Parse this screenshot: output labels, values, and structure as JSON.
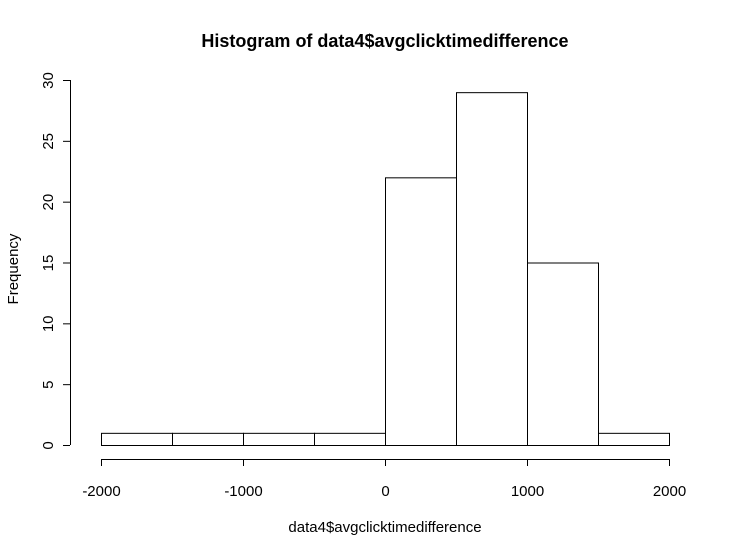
{
  "chart_data": {
    "type": "bar",
    "title": "Histogram of data4$avgclicktimedifference",
    "xlabel": "data4$avgclicktimedifference",
    "ylabel": "Frequency",
    "bins": [
      {
        "from": -2000,
        "to": -1500,
        "count": 1
      },
      {
        "from": -1500,
        "to": -1000,
        "count": 1
      },
      {
        "from": -1000,
        "to": -500,
        "count": 1
      },
      {
        "from": -500,
        "to": 0,
        "count": 1
      },
      {
        "from": 0,
        "to": 500,
        "count": 22
      },
      {
        "from": 500,
        "to": 1000,
        "count": 29
      },
      {
        "from": 1000,
        "to": 1500,
        "count": 15
      },
      {
        "from": 1500,
        "to": 2000,
        "count": 1
      }
    ],
    "xlim": [
      -2000,
      2000
    ],
    "ylim": [
      0,
      30
    ],
    "xticks": [
      -2000,
      -1000,
      0,
      1000,
      2000
    ],
    "yticks": [
      0,
      5,
      10,
      15,
      20,
      25,
      30
    ],
    "grid": false
  }
}
